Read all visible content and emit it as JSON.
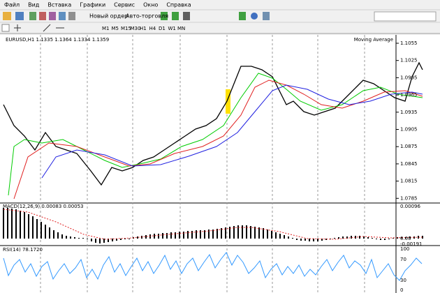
{
  "menu": [
    "Файл",
    "Вид",
    "Вставка",
    "Графики",
    "Сервис",
    "Окно",
    "Справка"
  ],
  "toolbar": {
    "new_order": "Новый ордер",
    "auto_trading": "Авто-торговля"
  },
  "timeframes": [
    "M1",
    "M5",
    "M15",
    "M30",
    "H1",
    "H4",
    "D1",
    "W1",
    "MN"
  ],
  "chart": {
    "header": "EURUSD,H1  1.1335 1.1364 1.1334 1.1359",
    "indicator": "Moving Average",
    "price_axis": [
      "1.1055",
      "1.1025",
      "1.0995",
      "1.0965",
      "1.0935",
      "1.0905",
      "1.0875",
      "1.0845",
      "1.0815",
      "1.0785"
    ]
  },
  "macd": {
    "header": "MACD(12,26,9) 0.00083 0.00053",
    "axis": [
      "0.00096",
      "0.00",
      "-0.00191"
    ]
  },
  "rsi": {
    "header": "RSI(14) 78.1720",
    "axis": [
      "100",
      "70",
      "30",
      "0"
    ]
  }
}
